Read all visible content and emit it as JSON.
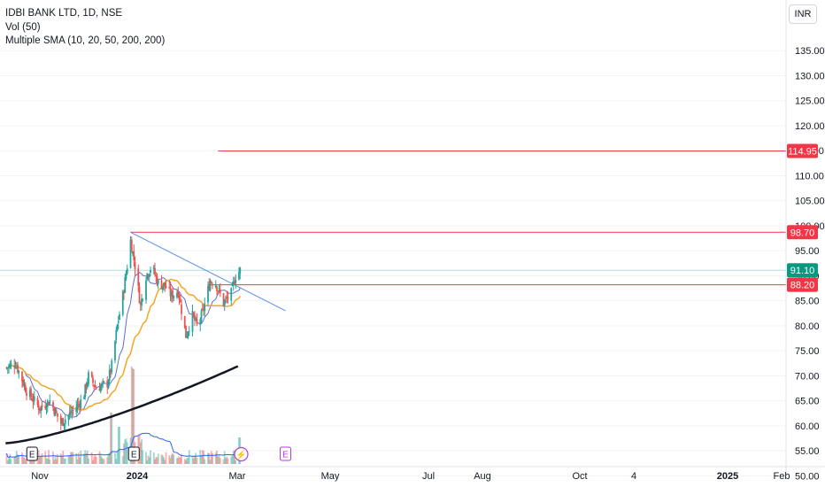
{
  "legend": {
    "symbol": "IDBI BANK LTD, 1D, NSE",
    "volume": "Vol (50)",
    "sma": "Multiple SMA (10, 20, 50, 200, 200)"
  },
  "currency": "INR",
  "colors": {
    "up": "#26a69a",
    "down": "#ef5350",
    "sma_short": "#5b6fd6",
    "sma_mid": "#f5a623",
    "sma_long": "#131722",
    "trendline": "#5b8def",
    "level_line": "#f23645",
    "last_price": "#089981",
    "volume_sma": "#2962ff",
    "event_marker": "#b03fd0"
  },
  "chart_data": {
    "type": "candlestick",
    "y_axis": {
      "min": 48.5,
      "max": 138,
      "ticks": [
        "50.00",
        "55.00",
        "60.00",
        "65.00",
        "70.00",
        "75.00",
        "80.00",
        "85.00",
        "90.00",
        "95.00",
        "100.00",
        "105.00",
        "110.00",
        "115.00",
        "120.00",
        "125.00",
        "130.00",
        "135.00"
      ]
    },
    "x_axis": {
      "ticks": [
        "Nov",
        "2024",
        "Mar",
        "May",
        "Jul",
        "Aug",
        "Oct",
        "4",
        "2025",
        "Feb"
      ],
      "bold_ticks": [
        "2024",
        "2025"
      ]
    },
    "price_levels": [
      {
        "label": "114.95",
        "value": 114.95,
        "from_date": "2024-04-10"
      },
      {
        "label": "98.70",
        "value": 98.7,
        "from_date": "2024-01-22"
      },
      {
        "label": "88.20",
        "value": 88.2,
        "from_date": "2024-04-01"
      }
    ],
    "last_price": {
      "label": "91.10",
      "value": 91.1
    },
    "trendline": {
      "start": {
        "date": "2024-01-22",
        "value": 98.7
      },
      "end": {
        "date": "2024-06-10",
        "value": 83.0
      }
    },
    "earnings_markers": [
      {
        "label": "E",
        "date": "2023-10-25"
      },
      {
        "label": "E",
        "date": "2024-01-25"
      },
      {
        "label": "E",
        "date": "2024-06-10"
      }
    ],
    "dividend_marker": {
      "label": "⚡",
      "date": "2024-05-01"
    },
    "volume_peak_dates": [
      "2024-01-05",
      "2024-01-24",
      "2024-01-12",
      "2024-04-29"
    ],
    "keypoints": [
      {
        "date": "2023-10-01",
        "value": 71.5
      },
      {
        "date": "2023-10-10",
        "value": 72.5
      },
      {
        "date": "2023-10-20",
        "value": 67.0
      },
      {
        "date": "2023-11-01",
        "value": 63.5
      },
      {
        "date": "2023-11-10",
        "value": 65.0
      },
      {
        "date": "2023-11-20",
        "value": 60.5
      },
      {
        "date": "2023-12-01",
        "value": 63.0
      },
      {
        "date": "2023-12-10",
        "value": 65.5
      },
      {
        "date": "2023-12-15",
        "value": 70.0
      },
      {
        "date": "2023-12-22",
        "value": 67.5
      },
      {
        "date": "2024-01-01",
        "value": 68.5
      },
      {
        "date": "2024-01-05",
        "value": 72.0
      },
      {
        "date": "2024-01-10",
        "value": 80.0
      },
      {
        "date": "2024-01-15",
        "value": 86.0
      },
      {
        "date": "2024-01-19",
        "value": 92.0
      },
      {
        "date": "2024-01-22",
        "value": 97.0
      },
      {
        "date": "2024-01-26",
        "value": 92.0
      },
      {
        "date": "2024-01-31",
        "value": 84.0
      },
      {
        "date": "2024-02-05",
        "value": 90.0
      },
      {
        "date": "2024-02-10",
        "value": 92.0
      },
      {
        "date": "2024-02-16",
        "value": 88.5
      },
      {
        "date": "2024-02-22",
        "value": 88.0
      },
      {
        "date": "2024-02-28",
        "value": 86.0
      },
      {
        "date": "2024-03-05",
        "value": 87.0
      },
      {
        "date": "2024-03-12",
        "value": 78.0
      },
      {
        "date": "2024-03-18",
        "value": 82.0
      },
      {
        "date": "2024-03-22",
        "value": 80.0
      },
      {
        "date": "2024-03-27",
        "value": 82.5
      },
      {
        "date": "2024-04-03",
        "value": 89.0
      },
      {
        "date": "2024-04-08",
        "value": 88.5
      },
      {
        "date": "2024-04-15",
        "value": 84.5
      },
      {
        "date": "2024-04-22",
        "value": 86.5
      },
      {
        "date": "2024-04-26",
        "value": 90.0
      },
      {
        "date": "2024-04-30",
        "value": 91.1
      }
    ]
  }
}
